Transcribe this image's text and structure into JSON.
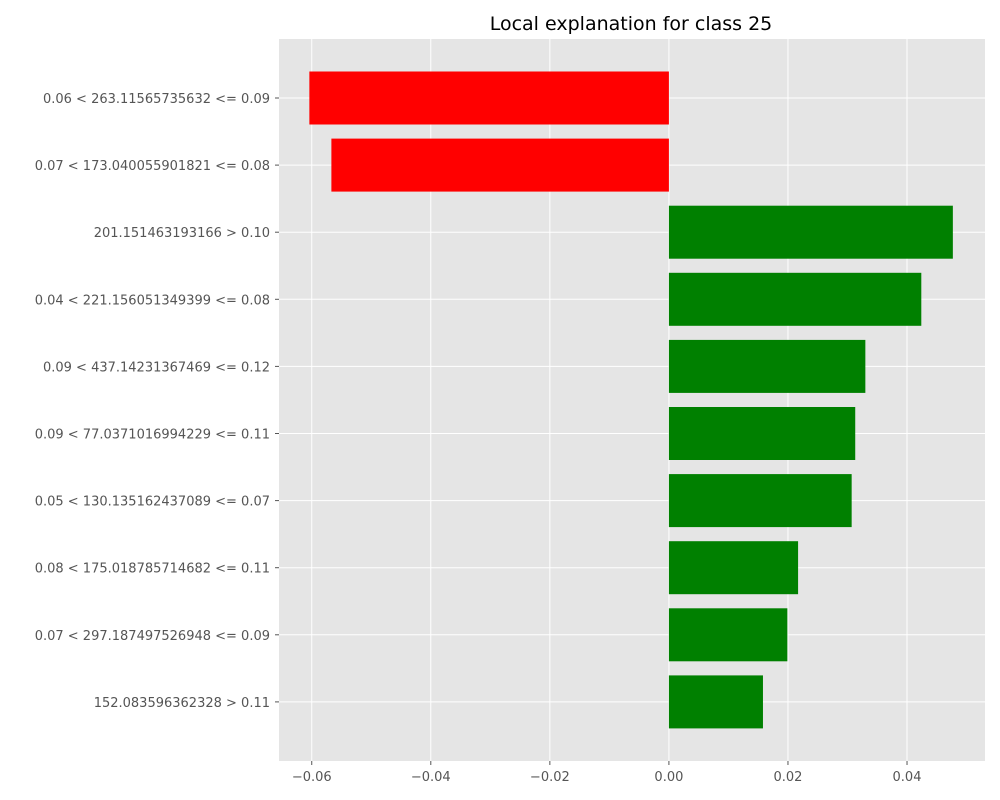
{
  "chart_data": {
    "type": "bar",
    "orientation": "horizontal",
    "title": "Local explanation for class 25",
    "xlabel": "",
    "ylabel": "",
    "categories": [
      "0.06 < 263.11565735632 <= 0.09",
      "0.07 < 173.040055901821 <= 0.08",
      "201.151463193166 > 0.10",
      "0.04 < 221.156051349399 <= 0.08",
      "0.09 < 437.14231367469 <= 0.12",
      "0.09 < 77.0371016994229 <= 0.11",
      "0.05 < 130.135162437089 <= 0.07",
      "0.08 < 175.018785714682 <= 0.11",
      "0.07 < 297.187497526948 <= 0.09",
      "152.083596362328 > 0.11"
    ],
    "values": [
      -0.0604,
      -0.0567,
      0.0477,
      0.0424,
      0.033,
      0.0313,
      0.0307,
      0.0217,
      0.0199,
      0.0158
    ],
    "xlim": [
      -0.0655,
      0.0531
    ],
    "xticks": [
      -0.06,
      -0.04,
      -0.02,
      0.0,
      0.02,
      0.04
    ],
    "xtick_labels": [
      "−0.06",
      "−0.04",
      "−0.02",
      "0.00",
      "0.02",
      "0.04"
    ],
    "grid": true,
    "legend": "none",
    "colors": {
      "positive": "#008000",
      "negative": "#ff0000",
      "plot_background": "#e5e5e5",
      "grid": "#ffffff",
      "tick_text": "#555555"
    }
  }
}
